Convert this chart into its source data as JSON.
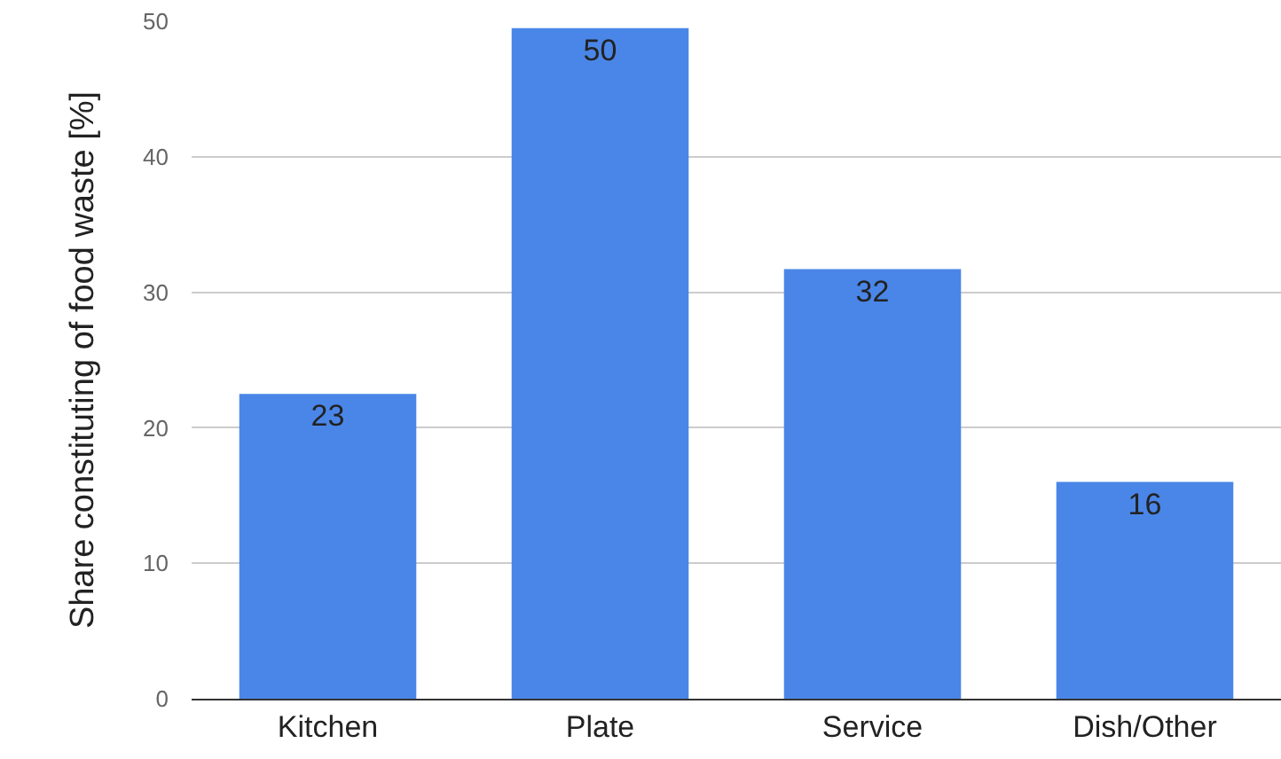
{
  "chart_data": {
    "type": "bar",
    "ylabel": "Share constituting of food waste [%]",
    "categories": [
      "Kitchen",
      "Plate",
      "Service",
      "Dish/Other"
    ],
    "values": [
      22.5,
      49.5,
      31.7,
      16
    ],
    "value_labels": [
      "23",
      "50",
      "32",
      "16"
    ],
    "color": "#4a86e8",
    "ylim": [
      0,
      50
    ],
    "yticks": [
      0,
      10,
      20,
      30,
      40,
      50
    ],
    "grid": "y"
  }
}
